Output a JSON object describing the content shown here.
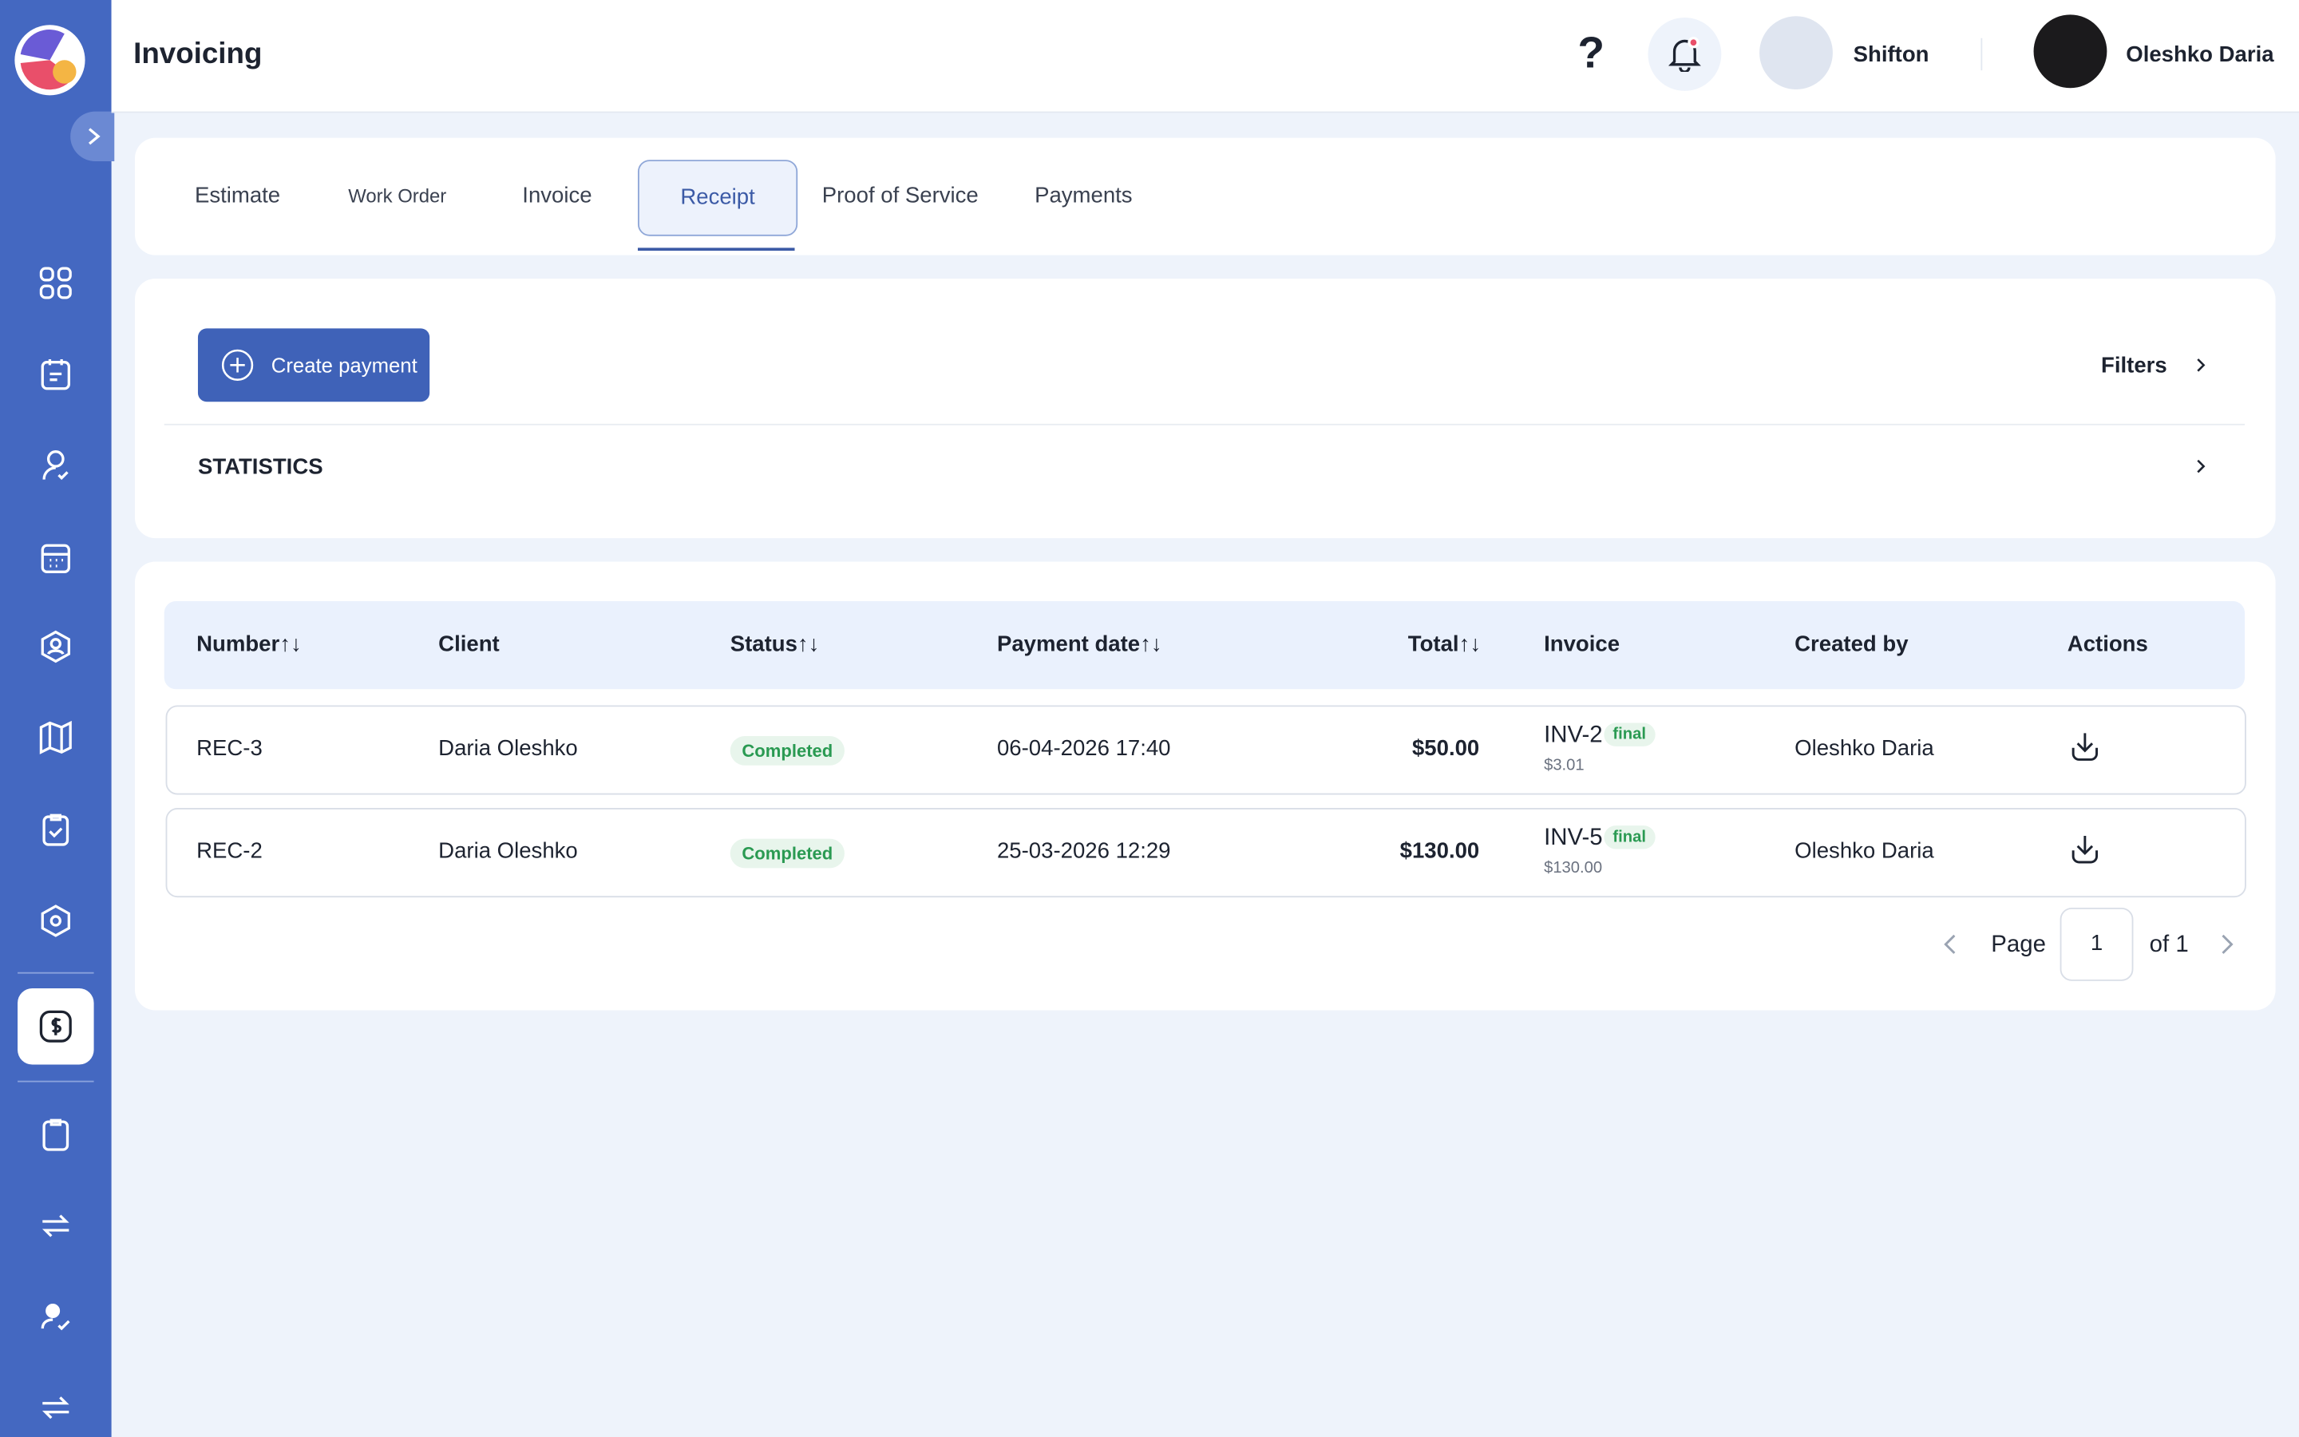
{
  "header": {
    "title": "Invoicing",
    "help": "?",
    "company": "Shifton",
    "user": "Oleshko Daria"
  },
  "tabs": {
    "items": [
      "Estimate",
      "Work Order",
      "Invoice",
      "Receipt",
      "Proof of Service",
      "Payments"
    ],
    "active": 3
  },
  "toolbar": {
    "create_button": "Create payment",
    "filters": "Filters",
    "statistics": "STATISTICS"
  },
  "table": {
    "columns": [
      "Number↑↓",
      "Client",
      "Status↑↓",
      "Payment date↑↓",
      "Total↑↓",
      "Invoice",
      "Created by",
      "Actions"
    ],
    "rows": [
      {
        "number": "REC-3",
        "client": "Daria Oleshko",
        "status": "Completed",
        "payment_date": "06-04-2026 17:40",
        "total": "$50.00",
        "invoice": "INV-2",
        "invoice_badge": "final",
        "invoice_amount": "$3.01",
        "created_by": "Oleshko Daria"
      },
      {
        "number": "REC-2",
        "client": "Daria Oleshko",
        "status": "Completed",
        "payment_date": "25-03-2026 12:29",
        "total": "$130.00",
        "invoice": "INV-5",
        "invoice_badge": "final",
        "invoice_amount": "$130.00",
        "created_by": "Oleshko Daria"
      }
    ]
  },
  "pagination": {
    "label": "Page",
    "page": 1,
    "of": "of 1"
  }
}
